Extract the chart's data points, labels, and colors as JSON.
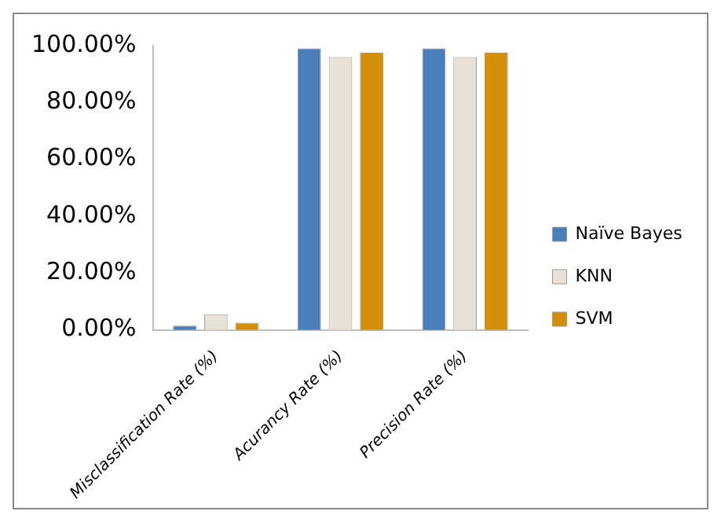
{
  "chart_data": {
    "type": "bar",
    "categories": [
      "Misclassification Rate (%)",
      "Acurancy Rate (%)",
      "Precision Rate (%)"
    ],
    "series": [
      {
        "name": "Naïve Bayes",
        "color": "#4a7ebb",
        "values": [
          1.5,
          99,
          99
        ]
      },
      {
        "name": "KNN",
        "color": "#e8e2d6",
        "values": [
          5.5,
          96,
          96
        ]
      },
      {
        "name": "SVM",
        "color": "#d48f0a",
        "values": [
          2.5,
          97.5,
          97.5
        ]
      }
    ],
    "ylim": [
      0,
      100
    ],
    "yticks": [
      {
        "value": 0,
        "label": "0.00%"
      },
      {
        "value": 20,
        "label": "20.00%"
      },
      {
        "value": 40,
        "label": "40.00%"
      },
      {
        "value": 60,
        "label": "60.00%"
      },
      {
        "value": 80,
        "label": "80.00%"
      },
      {
        "value": 100,
        "label": "100.00%"
      }
    ],
    "grid": false,
    "legend": "right"
  }
}
